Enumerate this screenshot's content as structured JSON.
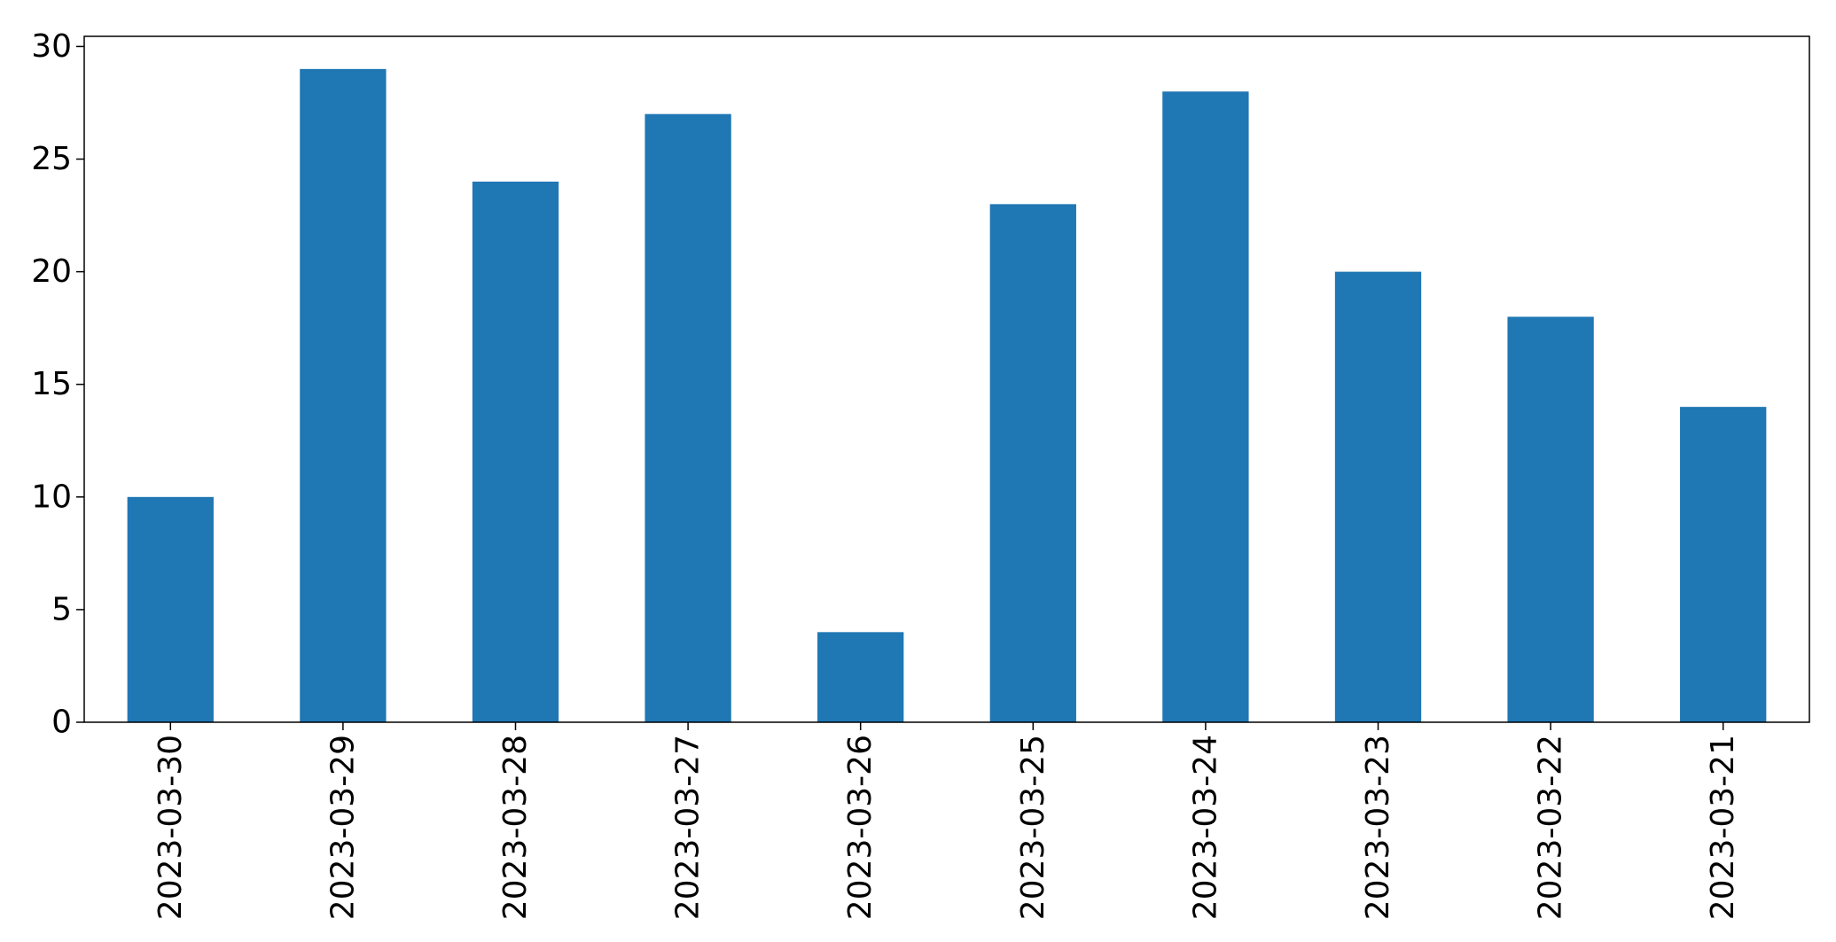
{
  "chart_data": {
    "type": "bar",
    "title": "",
    "xlabel": "",
    "ylabel": "",
    "categories": [
      "2023-03-30",
      "2023-03-29",
      "2023-03-28",
      "2023-03-27",
      "2023-03-26",
      "2023-03-25",
      "2023-03-24",
      "2023-03-23",
      "2023-03-22",
      "2023-03-21"
    ],
    "values": [
      10,
      29,
      24,
      27,
      4,
      23,
      28,
      20,
      18,
      14
    ],
    "ylim": [
      0,
      30.45
    ],
    "yticks": [
      0,
      5,
      10,
      15,
      20,
      25,
      30
    ],
    "grid": false,
    "legend": false,
    "bar_color": "#1f77b4"
  }
}
